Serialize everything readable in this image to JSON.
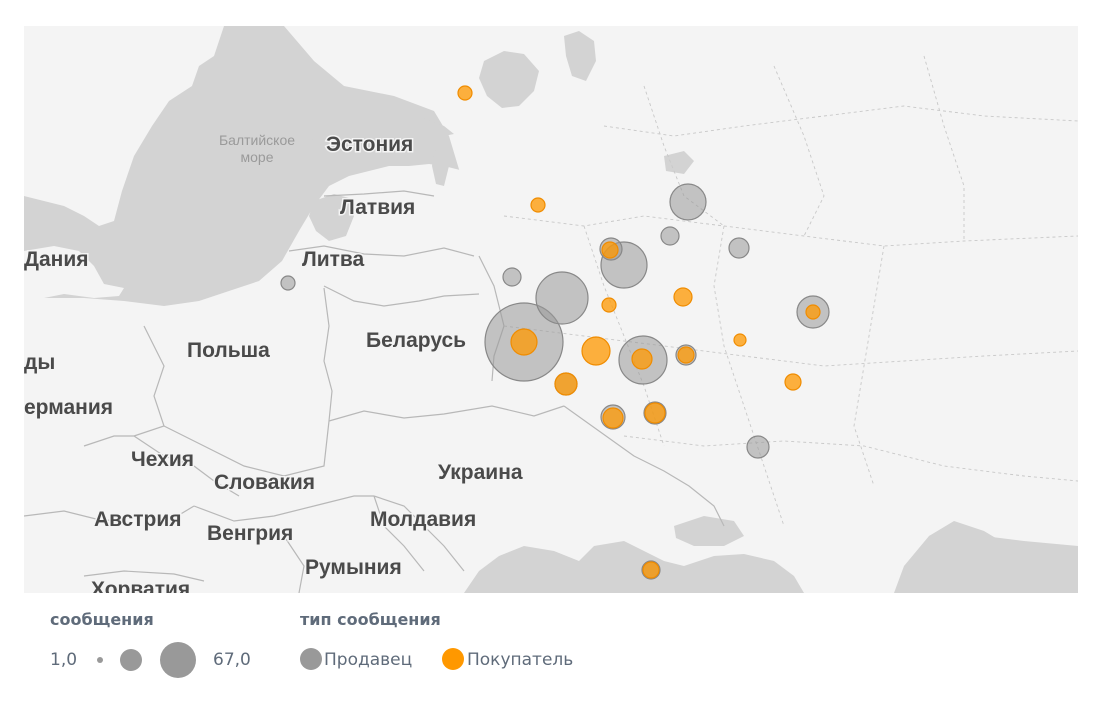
{
  "map": {
    "colors": {
      "water": "#d3d3d3",
      "land": "#f4f4f4",
      "border": "#b8b8b8",
      "seller": "#999999",
      "buyer": "#ff9800"
    },
    "sea_label": [
      "Балтийское",
      "море"
    ],
    "countries": [
      {
        "id": "estonia",
        "name": "Эстония"
      },
      {
        "id": "latvia",
        "name": "Латвия"
      },
      {
        "id": "lithuania",
        "name": "Литва"
      },
      {
        "id": "denmark",
        "name": "Дания"
      },
      {
        "id": "belarus",
        "name": "Беларусь"
      },
      {
        "id": "poland",
        "name": "Польша"
      },
      {
        "id": "netherlands",
        "name": "ды"
      },
      {
        "id": "germany",
        "name": "ермания"
      },
      {
        "id": "czechia",
        "name": "Чехия"
      },
      {
        "id": "slovakia",
        "name": "Словакия"
      },
      {
        "id": "ukraine",
        "name": "Украина"
      },
      {
        "id": "austria",
        "name": "Австрия"
      },
      {
        "id": "hungary",
        "name": "Венгрия"
      },
      {
        "id": "moldova",
        "name": "Молдавия"
      },
      {
        "id": "romania",
        "name": "Румыния"
      },
      {
        "id": "croatia",
        "name": "Хорватия"
      }
    ]
  },
  "legend": {
    "size_title": "сообщения",
    "size_min": "1,0",
    "size_max": "67,0",
    "type_title": "тип сообщения",
    "type_items": [
      {
        "label": "Продавец",
        "color": "#999999"
      },
      {
        "label": "Покупатель",
        "color": "#ff9800"
      }
    ]
  }
}
